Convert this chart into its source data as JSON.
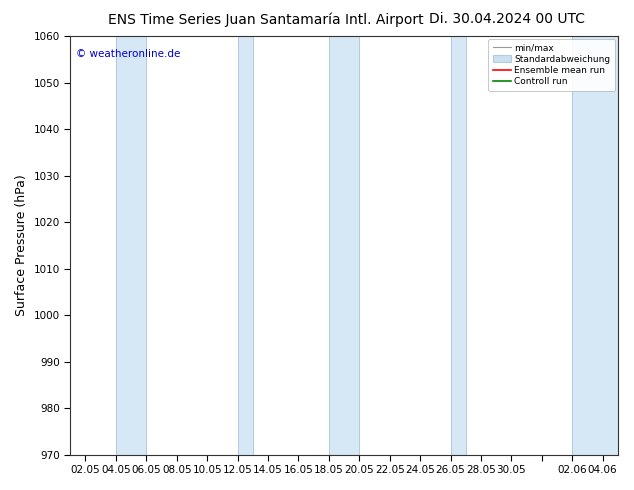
{
  "title_left": "ENS Time Series Juan Santamaría Intl. Airport",
  "title_right": "Di. 30.04.2024 00 UTC",
  "ylabel": "Surface Pressure (hPa)",
  "ylim": [
    970,
    1060
  ],
  "yticks": [
    970,
    980,
    990,
    1000,
    1010,
    1020,
    1030,
    1040,
    1050,
    1060
  ],
  "xtick_labels": [
    "02.05",
    "04.05",
    "06.05",
    "08.05",
    "10.05",
    "12.05",
    "14.05",
    "16.05",
    "18.05",
    "20.05",
    "22.05",
    "24.05",
    "26.05",
    "28.05",
    "30.05",
    "",
    "02.06",
    "04.06"
  ],
  "watermark": "© weatheronline.de",
  "legend_entries": [
    "min/max",
    "Standardabweichung",
    "Ensemble mean run",
    "Controll run"
  ],
  "band_color": "#d6e8f5",
  "band_edge_color": "#b0cce0",
  "background_color": "#ffffff",
  "plot_bg_color": "#ffffff",
  "mean_line_color": "#ff0000",
  "control_line_color": "#008800",
  "minmax_line_color": "#999999",
  "std_fill_color": "#ccdff0",
  "title_fontsize": 10,
  "tick_fontsize": 7.5,
  "ylabel_fontsize": 9,
  "watermark_color": "#0000cc",
  "band_xranges": [
    [
      3.5,
      6.5
    ],
    [
      11.5,
      13.5
    ],
    [
      18.0,
      20.0
    ],
    [
      25.5,
      27.5
    ],
    [
      33.0,
      36.0
    ]
  ],
  "num_points": 36,
  "xlim": [
    -0.5,
    35.5
  ]
}
